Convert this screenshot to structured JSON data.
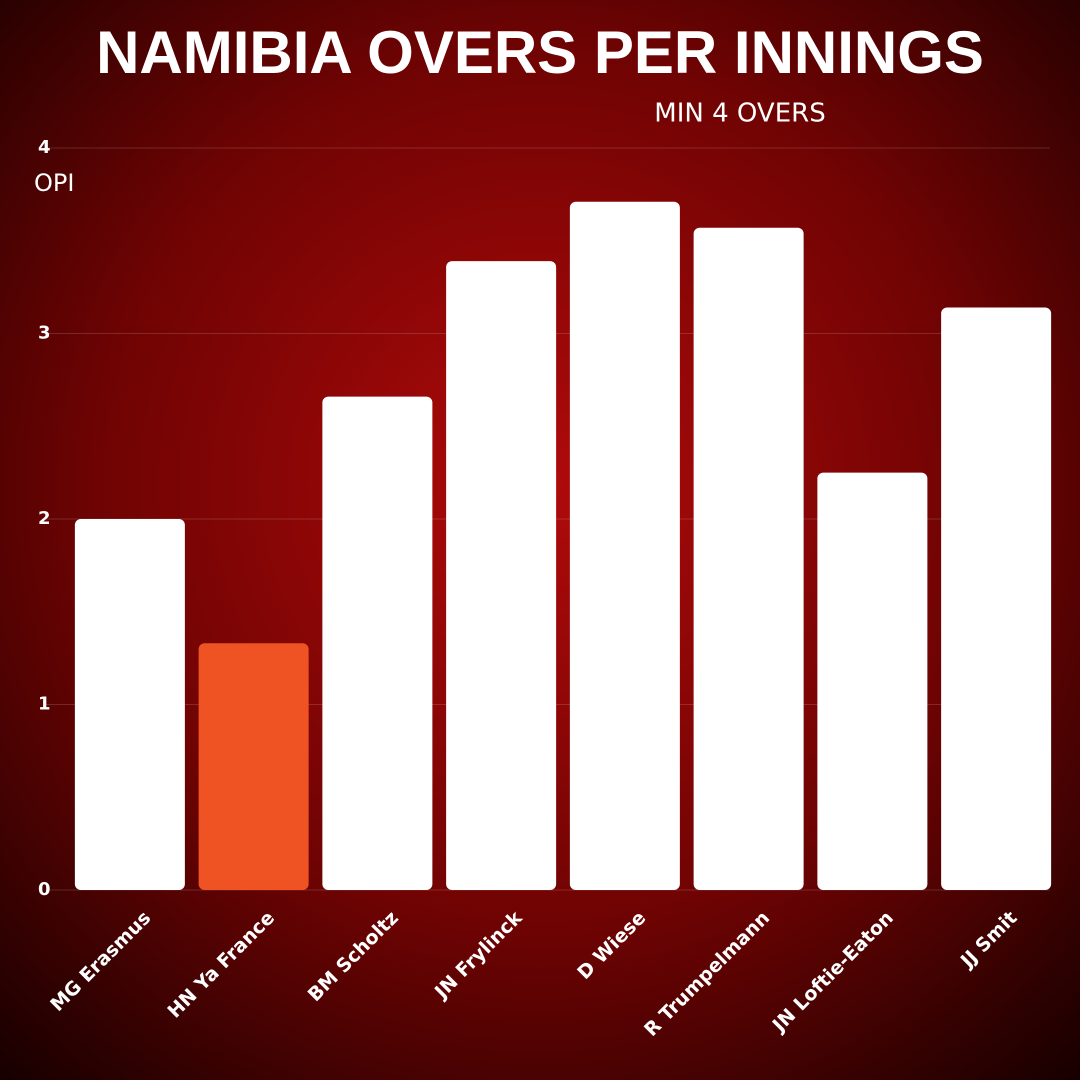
{
  "chart_data": {
    "type": "bar",
    "title": "NAMIBIA OVERS PER INNINGS",
    "subtitle": "MIN 4 OVERS",
    "y_label": "OPI",
    "categories": [
      "MG Erasmus",
      "HN Ya France",
      "BM Scholtz",
      "JN Frylinck",
      "D Wiese",
      "R Trumpelmann",
      "JN Loftie-Eaton",
      "JJ Smit"
    ],
    "values": [
      2.0,
      1.33,
      2.66,
      3.39,
      3.71,
      3.57,
      2.25,
      3.14
    ],
    "colors": [
      "#ffffff",
      "#f05323",
      "#ffffff",
      "#ffffff",
      "#ffffff",
      "#ffffff",
      "#ffffff",
      "#ffffff"
    ],
    "ylim": [
      0,
      4
    ],
    "yticks": [
      0,
      1,
      2,
      3,
      4
    ],
    "grid": true
  }
}
